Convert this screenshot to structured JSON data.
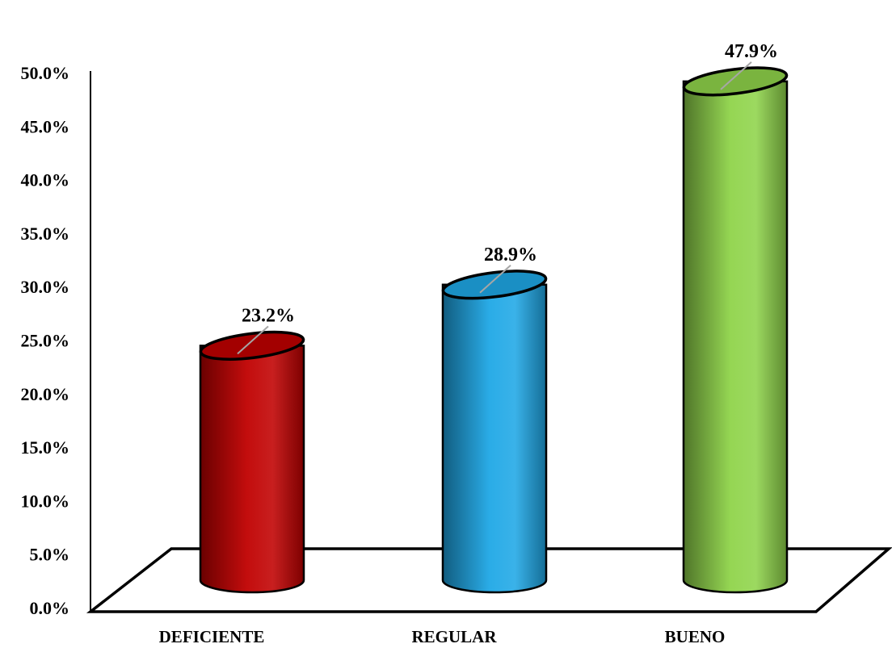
{
  "chart_data": {
    "type": "bar",
    "style": "3d-cylinder",
    "categories": [
      "DEFICIENTE",
      "REGULAR",
      "BUENO"
    ],
    "values": [
      23.2,
      28.9,
      47.9
    ],
    "data_labels": [
      "23.2%",
      "28.9%",
      "47.9%"
    ],
    "colors": [
      "#c00000",
      "#1fa8e6",
      "#8fd44a"
    ],
    "ylim": [
      0,
      50
    ],
    "y_ticks": [
      0,
      5,
      10,
      15,
      20,
      25,
      30,
      35,
      40,
      45,
      50
    ],
    "y_tick_labels": [
      "0.0%",
      "5.0%",
      "10.0%",
      "15.0%",
      "20.0%",
      "25.0%",
      "30.0%",
      "35.0%",
      "40.0%",
      "45.0%",
      "50.0%"
    ],
    "grid": false,
    "legend": "none",
    "title": "",
    "xlabel": "",
    "ylabel": ""
  }
}
